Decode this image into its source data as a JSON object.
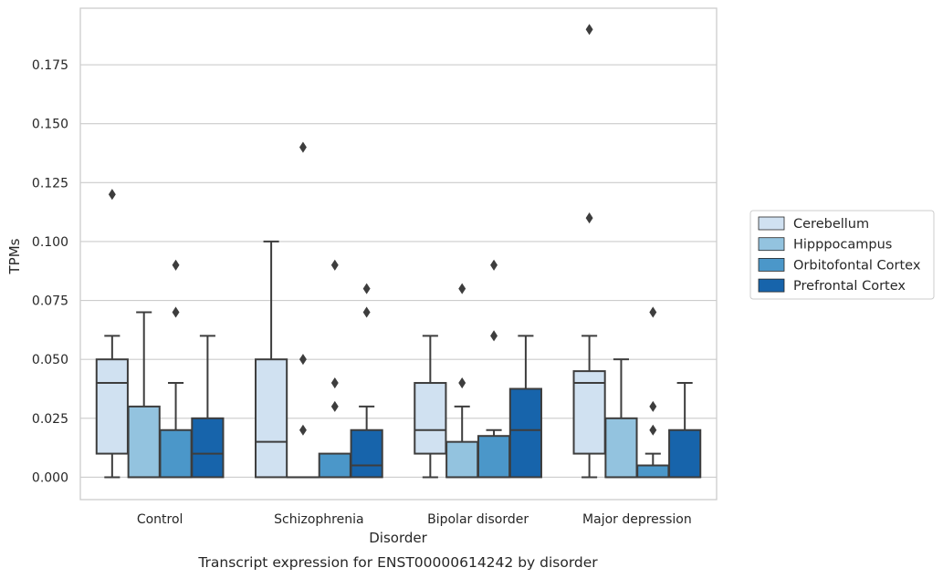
{
  "chart_data": {
    "type": "boxplot",
    "caption": "Transcript expression for ENST00000614242 by disorder",
    "xlabel": "Disorder",
    "ylabel": "TPMs",
    "ylim": [
      -0.0095,
      0.199
    ],
    "yticks": [
      "0.000",
      "0.025",
      "0.050",
      "0.075",
      "0.100",
      "0.125",
      "0.150",
      "0.175"
    ],
    "ytick_values": [
      0,
      0.025,
      0.05,
      0.075,
      0.1,
      0.125,
      0.15,
      0.175
    ],
    "grid": "horizontal",
    "legend_position": "right",
    "categories": [
      "Control",
      "Schizophrenia",
      "Bipolar disorder",
      "Major depression"
    ],
    "series": [
      {
        "name": "Cerebellum",
        "color": "#d0e1f1",
        "boxes": [
          {
            "whislo": 0,
            "q1": 0.01,
            "med": 0.04,
            "q3": 0.05,
            "whishi": 0.06,
            "fliers": [
              0.12
            ]
          },
          {
            "whislo": 0,
            "q1": 0,
            "med": 0.015,
            "q3": 0.05,
            "whishi": 0.1,
            "fliers": []
          },
          {
            "whislo": 0,
            "q1": 0.01,
            "med": 0.02,
            "q3": 0.04,
            "whishi": 0.06,
            "fliers": []
          },
          {
            "whislo": 0,
            "q1": 0.01,
            "med": 0.04,
            "q3": 0.045,
            "whishi": 0.06,
            "fliers": [
              0.11,
              0.19
            ]
          }
        ]
      },
      {
        "name": "Hipppocampus",
        "color": "#93c3df",
        "boxes": [
          {
            "whislo": 0,
            "q1": 0,
            "med": 0,
            "q3": 0.03,
            "whishi": 0.07,
            "fliers": []
          },
          {
            "whislo": 0,
            "q1": 0,
            "med": 0,
            "q3": 0,
            "whishi": 0,
            "fliers": [
              0.02,
              0.05,
              0.14
            ]
          },
          {
            "whislo": 0,
            "q1": 0,
            "med": 0,
            "q3": 0.015,
            "whishi": 0.03,
            "fliers": [
              0.04,
              0.08
            ]
          },
          {
            "whislo": 0,
            "q1": 0,
            "med": 0,
            "q3": 0.025,
            "whishi": 0.05,
            "fliers": []
          }
        ]
      },
      {
        "name": "Orbitofontal Cortex",
        "color": "#4b97c9",
        "boxes": [
          {
            "whislo": 0,
            "q1": 0,
            "med": 0,
            "q3": 0.02,
            "whishi": 0.04,
            "fliers": [
              0.07,
              0.09
            ]
          },
          {
            "whislo": 0,
            "q1": 0,
            "med": 0,
            "q3": 0.01,
            "whishi": 0.01,
            "fliers": [
              0.03,
              0.04,
              0.09
            ]
          },
          {
            "whislo": 0,
            "q1": 0,
            "med": 0,
            "q3": 0.0175,
            "whishi": 0.02,
            "fliers": [
              0.06,
              0.09
            ]
          },
          {
            "whislo": 0,
            "q1": 0,
            "med": 0,
            "q3": 0.005,
            "whishi": 0.01,
            "fliers": [
              0.02,
              0.03,
              0.07
            ]
          }
        ]
      },
      {
        "name": "Prefrontal Cortex",
        "color": "#1764ab",
        "boxes": [
          {
            "whislo": 0,
            "q1": 0,
            "med": 0.01,
            "q3": 0.025,
            "whishi": 0.06,
            "fliers": []
          },
          {
            "whislo": 0,
            "q1": 0,
            "med": 0.005,
            "q3": 0.02,
            "whishi": 0.03,
            "fliers": [
              0.07,
              0.08
            ]
          },
          {
            "whislo": 0,
            "q1": 0,
            "med": 0.02,
            "q3": 0.0375,
            "whishi": 0.06,
            "fliers": []
          },
          {
            "whislo": 0,
            "q1": 0,
            "med": 0,
            "q3": 0.02,
            "whishi": 0.04,
            "fliers": []
          }
        ]
      }
    ]
  }
}
